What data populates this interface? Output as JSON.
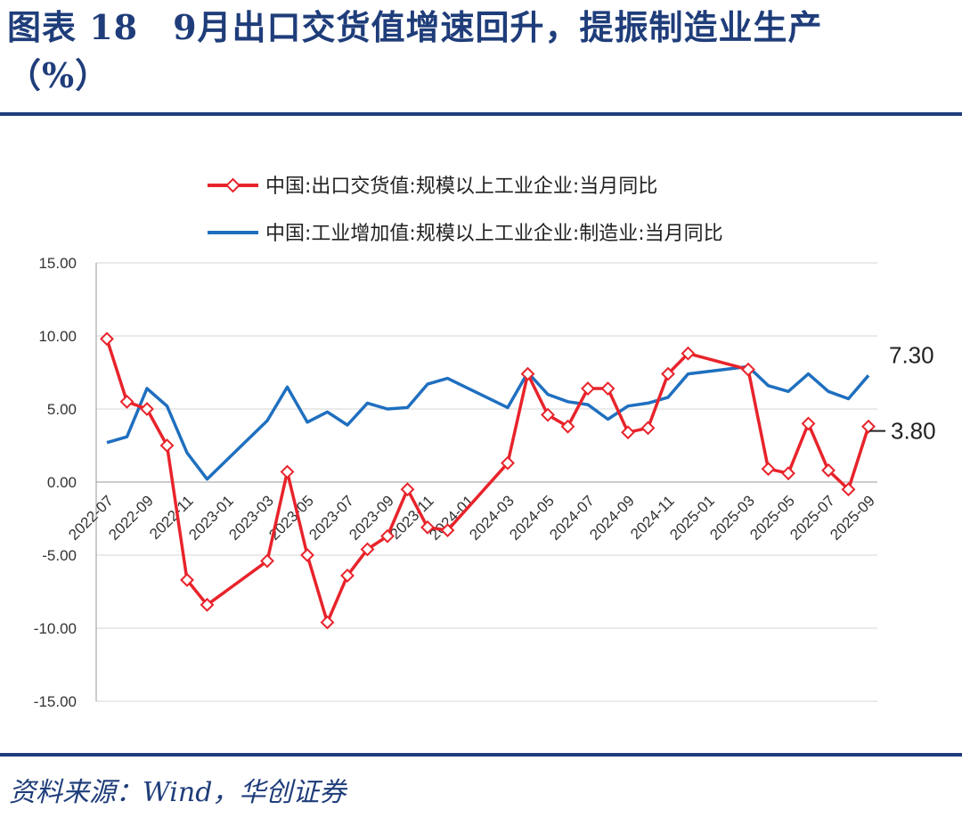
{
  "header": {
    "title_line1": "图表 18　9月出口交货值增速回升，提振制造业生产",
    "title_line2": "（%）"
  },
  "source": "资料来源：Wind，华创证券",
  "chart_data": {
    "type": "line",
    "title": "图表 18　9月出口交货值增速回升，提振制造业生产（%）",
    "ylim": [
      -15,
      15
    ],
    "yticks": [
      "15.00",
      "10.00",
      "5.00",
      "0.00",
      "-5.00",
      "-10.00",
      "-15.00"
    ],
    "x": [
      "2022-07",
      "2022-08",
      "2022-09",
      "2022-10",
      "2022-11",
      "2022-12",
      "2023-01",
      "2023-02",
      "2023-03",
      "2023-04",
      "2023-05",
      "2023-06",
      "2023-07",
      "2023-08",
      "2023-09",
      "2023-10",
      "2023-11",
      "2023-12",
      "2024-01",
      "2024-02",
      "2024-03",
      "2024-04",
      "2024-05",
      "2024-06",
      "2024-07",
      "2024-08",
      "2024-09",
      "2024-10",
      "2024-11",
      "2024-12",
      "2025-01",
      "2025-02",
      "2025-03",
      "2025-04",
      "2025-05",
      "2025-06",
      "2025-07",
      "2025-08",
      "2025-09"
    ],
    "xtick_labels": [
      "2022-07",
      "2022-09",
      "2022-11",
      "2023-01",
      "2023-03",
      "2023-05",
      "2023-07",
      "2023-09",
      "2023-11",
      "2024-01",
      "2024-03",
      "2024-05",
      "2024-07",
      "2024-09",
      "2024-11",
      "2025-01",
      "2025-03",
      "2025-05",
      "2025-07",
      "2025-09"
    ],
    "grid": true,
    "legend_position": "top",
    "series": [
      {
        "name": "中国:出口交货值:规模以上工业企业:当月同比",
        "color": "#e8232b",
        "marker": "diamond",
        "values": [
          9.8,
          5.5,
          5.0,
          2.5,
          -6.7,
          -8.4,
          null,
          null,
          -5.4,
          0.7,
          -5.0,
          -9.6,
          -6.4,
          -4.6,
          -3.7,
          -0.5,
          -3.1,
          -3.3,
          null,
          null,
          1.3,
          7.4,
          4.6,
          3.8,
          6.4,
          6.4,
          3.4,
          3.7,
          7.4,
          8.8,
          null,
          null,
          7.7,
          0.9,
          0.6,
          4.0,
          0.8,
          -0.5,
          3.8
        ],
        "end_label": "3.80"
      },
      {
        "name": "中国:工业增加值:规模以上工业企业:制造业:当月同比",
        "color": "#1f6fbf",
        "marker": "none",
        "values": [
          2.7,
          3.1,
          6.4,
          5.2,
          2.0,
          0.2,
          null,
          null,
          4.2,
          6.5,
          4.1,
          4.8,
          3.9,
          5.4,
          5.0,
          5.1,
          6.7,
          7.1,
          null,
          null,
          5.1,
          7.5,
          6.0,
          5.5,
          5.3,
          4.3,
          5.2,
          5.4,
          5.8,
          7.4,
          null,
          null,
          7.9,
          6.6,
          6.2,
          7.4,
          6.2,
          5.7,
          7.3
        ],
        "end_label": "7.30"
      }
    ]
  }
}
